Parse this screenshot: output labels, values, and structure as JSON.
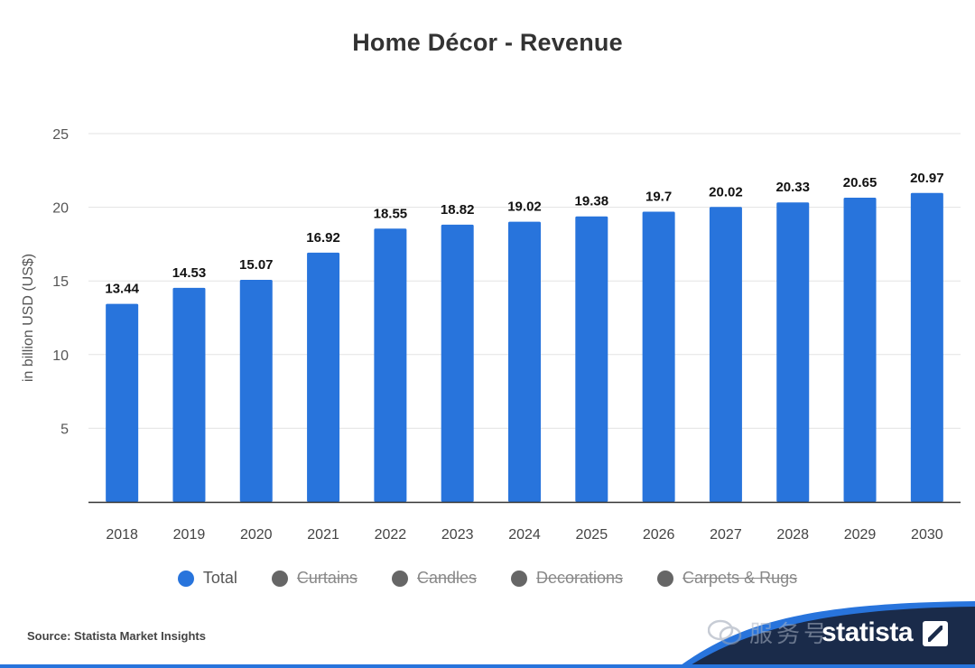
{
  "chart_data": {
    "type": "bar",
    "title": "Home Décor - Revenue",
    "ylabel": "in billion USD (US$)",
    "xlabel": "",
    "ylim": [
      0,
      25
    ],
    "yticks": [
      5,
      10,
      15,
      20,
      25
    ],
    "grid": true,
    "categories": [
      "2018",
      "2019",
      "2020",
      "2021",
      "2022",
      "2023",
      "2024",
      "2025",
      "2026",
      "2027",
      "2028",
      "2029",
      "2030"
    ],
    "series": [
      {
        "name": "Total",
        "color": "#2874dc",
        "values": [
          13.44,
          14.53,
          15.07,
          16.92,
          18.55,
          18.82,
          19.02,
          19.38,
          19.7,
          20.02,
          20.33,
          20.65,
          20.97
        ]
      }
    ],
    "legend": [
      {
        "label": "Total",
        "color": "#2874dc",
        "active": true
      },
      {
        "label": "Curtains",
        "color": "#666666",
        "active": false
      },
      {
        "label": "Candles",
        "color": "#666666",
        "active": false
      },
      {
        "label": "Decorations",
        "color": "#666666",
        "active": false
      },
      {
        "label": "Carpets & Rugs",
        "color": "#666666",
        "active": false
      }
    ],
    "legend_position": "bottom"
  },
  "footer": {
    "source": "Source: Statista Market Insights",
    "brand": "statista",
    "watermark": "服务号"
  }
}
